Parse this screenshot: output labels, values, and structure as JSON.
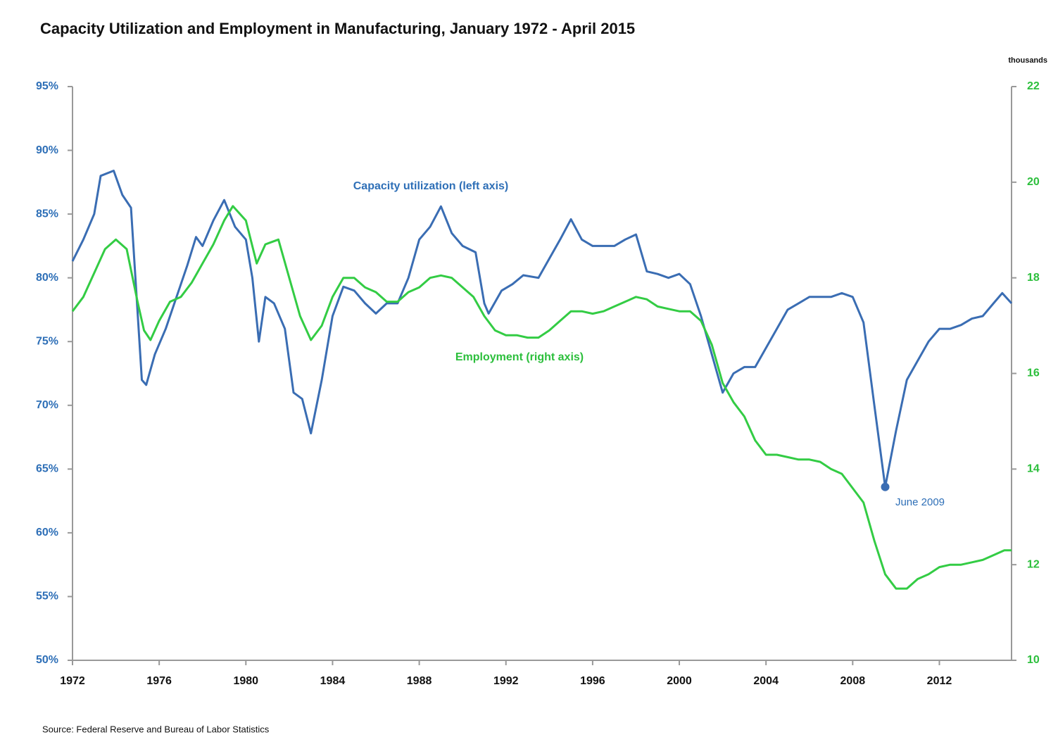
{
  "chart_data": {
    "type": "line",
    "title": "Capacity Utilization and Employment in Manufacturing, January 1972 - April 2015",
    "y2_unit": "thousands",
    "source": "Source: Federal Reserve and Bureau of Labor Statistics",
    "annotations": [
      "Capacity utilization (left axis)",
      "Employment (right axis)",
      "June 2009"
    ],
    "xlim": [
      1972,
      2015.33
    ],
    "xticks": [
      1972,
      1976,
      1980,
      1984,
      1988,
      1992,
      1996,
      2000,
      2004,
      2008,
      2012
    ],
    "ylim": [
      50,
      95
    ],
    "yticks": [
      {
        "value": 50,
        "label": "50%"
      },
      {
        "value": 55,
        "label": "55%"
      },
      {
        "value": 60,
        "label": "60%"
      },
      {
        "value": 65,
        "label": "65%"
      },
      {
        "value": 70,
        "label": "70%"
      },
      {
        "value": 75,
        "label": "75%"
      },
      {
        "value": 80,
        "label": "80%"
      },
      {
        "value": 85,
        "label": "85%"
      },
      {
        "value": 90,
        "label": "90%"
      },
      {
        "value": 95,
        "label": "95%"
      }
    ],
    "y2lim": [
      10,
      22
    ],
    "y2ticks": [
      10,
      12,
      14,
      16,
      18,
      20,
      22
    ],
    "grid": false,
    "series": [
      {
        "name": "Capacity utilization",
        "color": "#3a6db3",
        "x": [
          1972.0,
          1972.5,
          1973.0,
          1973.3,
          1973.9,
          1974.3,
          1974.7,
          1975.2,
          1975.4,
          1975.8,
          1976.3,
          1976.7,
          1977.3,
          1977.7,
          1978.0,
          1978.5,
          1979.0,
          1979.5,
          1980.0,
          1980.3,
          1980.6,
          1980.9,
          1981.3,
          1981.8,
          1982.2,
          1982.6,
          1983.0,
          1983.5,
          1984.0,
          1984.5,
          1985.0,
          1985.5,
          1986.0,
          1986.5,
          1987.0,
          1987.5,
          1988.0,
          1988.5,
          1989.0,
          1989.5,
          1990.0,
          1990.6,
          1991.0,
          1991.2,
          1991.8,
          1992.3,
          1992.8,
          1993.5,
          1994.0,
          1994.5,
          1995.0,
          1995.5,
          1996.0,
          1996.5,
          1997.0,
          1997.5,
          1998.0,
          1998.5,
          1999.0,
          1999.5,
          2000.0,
          2000.5,
          2001.0,
          2001.5,
          2002.0,
          2002.5,
          2003.0,
          2003.5,
          2004.0,
          2004.5,
          2005.0,
          2005.5,
          2006.0,
          2006.5,
          2007.0,
          2007.5,
          2008.0,
          2008.5,
          2009.0,
          2009.5,
          2010.0,
          2010.5,
          2011.0,
          2011.5,
          2012.0,
          2012.5,
          2013.0,
          2013.5,
          2014.0,
          2014.5,
          2014.9,
          2015.33
        ],
        "values": [
          81.3,
          83,
          85,
          88,
          88.4,
          86.5,
          85.5,
          72,
          71.6,
          74,
          76,
          78,
          81,
          83.2,
          82.5,
          84.5,
          86.1,
          84,
          83,
          80,
          75,
          78.5,
          78,
          76,
          71,
          70.5,
          67.8,
          72,
          77,
          79.3,
          79,
          78,
          77.2,
          78,
          78,
          80,
          83,
          84,
          85.6,
          83.5,
          82.5,
          82,
          78,
          77.2,
          79,
          79.5,
          80.2,
          80,
          81.5,
          83,
          84.6,
          83,
          82.5,
          82.5,
          82.5,
          83,
          83.4,
          80.5,
          80.3,
          80,
          80.3,
          79.5,
          77,
          74,
          71,
          72.5,
          73,
          73,
          74.5,
          76,
          77.5,
          78,
          78.5,
          78.5,
          78.5,
          78.8,
          78.5,
          76.5,
          70,
          63.6,
          68,
          72,
          73.5,
          75,
          76,
          76,
          76.3,
          76.8,
          77,
          78,
          78.8,
          78.0
        ]
      },
      {
        "name": "Employment",
        "color": "#33cc44",
        "axis": "y2",
        "x": [
          1972.0,
          1972.5,
          1973.0,
          1973.5,
          1974.0,
          1974.5,
          1975.0,
          1975.3,
          1975.6,
          1976.0,
          1976.5,
          1977.0,
          1977.5,
          1978.0,
          1978.5,
          1979.0,
          1979.4,
          1980.0,
          1980.5,
          1980.9,
          1981.5,
          1982.0,
          1982.5,
          1983.0,
          1983.5,
          1984.0,
          1984.5,
          1985.0,
          1985.5,
          1986.0,
          1986.5,
          1987.0,
          1987.5,
          1988.0,
          1988.5,
          1989.0,
          1989.5,
          1990.0,
          1990.5,
          1991.0,
          1991.5,
          1992.0,
          1992.5,
          1993.0,
          1993.5,
          1994.0,
          1994.5,
          1995.0,
          1995.5,
          1996.0,
          1996.5,
          1997.0,
          1997.5,
          1998.0,
          1998.5,
          1999.0,
          1999.5,
          2000.0,
          2000.5,
          2001.0,
          2001.5,
          2002.0,
          2002.5,
          2003.0,
          2003.5,
          2004.0,
          2004.5,
          2005.0,
          2005.5,
          2006.0,
          2006.5,
          2007.0,
          2007.5,
          2008.0,
          2008.5,
          2009.0,
          2009.5,
          2010.0,
          2010.5,
          2011.0,
          2011.5,
          2012.0,
          2012.5,
          2013.0,
          2013.5,
          2014.0,
          2014.5,
          2015.0,
          2015.33
        ],
        "values": [
          17.3,
          17.6,
          18.1,
          18.6,
          18.8,
          18.6,
          17.5,
          16.9,
          16.7,
          17.1,
          17.5,
          17.6,
          17.9,
          18.3,
          18.7,
          19.2,
          19.5,
          19.2,
          18.3,
          18.7,
          18.8,
          18.0,
          17.2,
          16.7,
          17.0,
          17.6,
          18.0,
          18.0,
          17.8,
          17.7,
          17.5,
          17.5,
          17.7,
          17.8,
          18.0,
          18.05,
          18.0,
          17.8,
          17.6,
          17.2,
          16.9,
          16.8,
          16.8,
          16.75,
          16.75,
          16.9,
          17.1,
          17.3,
          17.3,
          17.25,
          17.3,
          17.4,
          17.5,
          17.6,
          17.55,
          17.4,
          17.35,
          17.3,
          17.3,
          17.1,
          16.6,
          15.8,
          15.4,
          15.1,
          14.6,
          14.3,
          14.3,
          14.25,
          14.2,
          14.2,
          14.15,
          14.0,
          13.9,
          13.6,
          13.3,
          12.5,
          11.8,
          11.5,
          11.5,
          11.7,
          11.8,
          11.95,
          12.0,
          12.0,
          12.05,
          12.1,
          12.2,
          12.3,
          12.3
        ]
      }
    ]
  }
}
